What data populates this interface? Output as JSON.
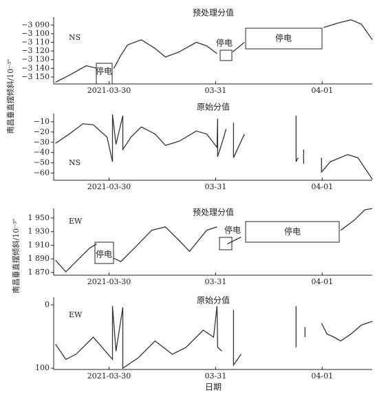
{
  "y_label": "南昌垂直摆倾斜/10⁻³″",
  "x_label": "日期",
  "chart_data": [
    {
      "type": "line",
      "title": "预处理分值",
      "label": "NS",
      "color": "#333333",
      "x": [
        -0.503,
        -0.374,
        -0.213,
        -0.116,
        null,
        0.045,
        0.11,
        0.174,
        0.303,
        0.432,
        0.529,
        0.658,
        0.819,
        0.916,
        1.013,
        null,
        1.161,
        1.271,
        null,
        2.013,
        2.142,
        2.271,
        2.368,
        2.471
      ],
      "values": [
        -3156,
        -3148,
        -3137,
        -3140,
        null,
        -3140,
        -3125,
        -3113,
        -3107,
        -3117,
        -3127,
        -3121,
        -3110,
        -3114,
        -3123,
        null,
        -3121,
        -3110,
        null,
        -3093,
        -3088,
        -3084,
        -3089,
        -3107
      ],
      "xlim": [
        -0.52,
        2.47
      ],
      "ylim": [
        -3158,
        -3081
      ],
      "xticks": [
        {
          "value": 0,
          "label": "2021-03-30"
        },
        {
          "value": 1,
          "label": "03-31"
        },
        {
          "value": 2,
          "label": "04-01"
        }
      ],
      "yticks": [
        {
          "value": -3090,
          "label": "−3 090"
        },
        {
          "value": -3100,
          "label": "−3 100"
        },
        {
          "value": -3110,
          "label": "−3 110"
        },
        {
          "value": -3120,
          "label": "−3 120"
        },
        {
          "value": -3130,
          "label": "−3 130"
        },
        {
          "value": -3140,
          "label": "−3 140"
        },
        {
          "value": -3150,
          "label": "−3 150"
        }
      ],
      "annotations": [
        "停电",
        "停电",
        "停电"
      ]
    },
    {
      "type": "line",
      "title": "原始分值",
      "label": "NS",
      "color": "#333333",
      "x": [
        -0.503,
        -0.374,
        -0.245,
        -0.148,
        -0.019,
        0.032,
        0.032,
        0.065,
        0.129,
        0.129,
        0.206,
        0.303,
        0.432,
        0.529,
        0.658,
        0.819,
        0.916,
        1.013,
        1.019,
        1.019,
        1.077,
        1.097,
        null,
        1.168,
        1.168,
        1.239,
        1.271,
        null,
        1.755,
        1.755,
        1.774,
        null,
        1.826,
        1.826,
        null,
        1.994,
        1.994,
        2.077,
        2.239,
        2.335,
        2.471
      ],
      "values": [
        -31,
        -22,
        -12,
        -13,
        -25,
        -49,
        -3,
        -32,
        -4,
        -37,
        -25,
        -15,
        -22,
        -33,
        -29,
        -19,
        -22,
        -35,
        -7,
        -44,
        -25,
        -17,
        null,
        -11,
        -45,
        -29,
        -22,
        null,
        -4,
        -49,
        -45,
        null,
        -37,
        -51,
        null,
        -45,
        -59,
        -49,
        -42,
        -45,
        -66
      ],
      "xlim": [
        -0.52,
        2.47
      ],
      "ylim": [
        -67,
        -2
      ],
      "xticks": [
        {
          "value": 0,
          "label": "2021-03-30"
        },
        {
          "value": 1,
          "label": "03-31"
        },
        {
          "value": 2,
          "label": "04-01"
        }
      ],
      "yticks": [
        {
          "value": -10,
          "label": "−10"
        },
        {
          "value": -20,
          "label": "−20"
        },
        {
          "value": -30,
          "label": "−30"
        },
        {
          "value": -40,
          "label": "−40"
        },
        {
          "value": -50,
          "label": "−50"
        },
        {
          "value": -60,
          "label": "−60"
        }
      ]
    },
    {
      "type": "line",
      "title": "预处理分值",
      "label": "EW",
      "color": "#333333",
      "x": [
        -0.503,
        -0.406,
        -0.31,
        -0.181,
        -0.116,
        null,
        0.045,
        0.11,
        0.239,
        0.4,
        0.529,
        0.658,
        0.755,
        0.916,
        1.013,
        null,
        1.11,
        1.239,
        null,
        2.174,
        2.303,
        2.4,
        2.471
      ],
      "values": [
        1888,
        1871,
        1886,
        1906,
        1912,
        null,
        1891,
        1886,
        1906,
        1932,
        1937,
        1917,
        1901,
        1932,
        1937,
        null,
        1912,
        1922,
        null,
        1932,
        1947,
        1962,
        1964
      ],
      "xlim": [
        -0.52,
        2.47
      ],
      "ylim": [
        1866,
        1964
      ],
      "xticks": [
        {
          "value": 0,
          "label": "2021-03-30"
        },
        {
          "value": 1,
          "label": "03-31"
        },
        {
          "value": 2,
          "label": "04-01"
        }
      ],
      "yticks": [
        {
          "value": 1950,
          "label": "1 950"
        },
        {
          "value": 1930,
          "label": "1 930"
        },
        {
          "value": 1910,
          "label": "1 910"
        },
        {
          "value": 1890,
          "label": "1 890"
        },
        {
          "value": 1870,
          "label": "1 870"
        }
      ],
      "annotations": [
        "停电",
        "停电",
        "停电"
      ]
    },
    {
      "type": "line",
      "title": "原始分值",
      "label": "EW",
      "color": "#333333",
      "x": [
        -0.503,
        -0.406,
        -0.31,
        -0.148,
        0.032,
        0.032,
        0.065,
        0.129,
        0.129,
        0.271,
        0.432,
        0.594,
        0.723,
        0.884,
        0.981,
        1.013,
        1.019,
        1.058,
        null,
        1.168,
        1.168,
        1.239,
        null,
        1.755,
        1.755,
        null,
        1.839,
        1.839,
        null,
        1.994,
        2.045,
        2.11,
        2.174,
        2.271,
        2.368,
        2.471
      ],
      "values": [
        62,
        86,
        78,
        51,
        86,
        2,
        73,
        4,
        100,
        84,
        57,
        78,
        67,
        40,
        51,
        2,
        67,
        73,
        null,
        8,
        95,
        78,
        null,
        2,
        67,
        null,
        35,
        51,
        null,
        29,
        46,
        51,
        57,
        46,
        32,
        26
      ],
      "xlim": [
        -0.52,
        2.47
      ],
      "ylim": [
        102,
        -12
      ],
      "xticks": [
        {
          "value": 0,
          "label": "2021-03-30"
        },
        {
          "value": 1,
          "label": "03-31"
        },
        {
          "value": 2,
          "label": "04-01"
        }
      ],
      "yticks": [
        0,
        100
      ]
    }
  ]
}
